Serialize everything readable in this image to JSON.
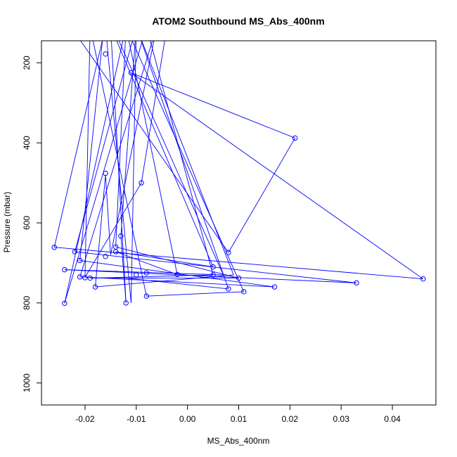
{
  "chart_data": {
    "type": "line",
    "title": "ATOM2 Southbound MS_Abs_400nm",
    "xlabel": "MS_Abs_400nm",
    "ylabel": "Pressure (mbar)",
    "xlim": [
      -0.0285,
      0.0485
    ],
    "ylim": [
      1055,
      145
    ],
    "y_reversed": true,
    "x_ticks": [
      -0.02,
      -0.01,
      0.0,
      0.01,
      0.02,
      0.03,
      0.04
    ],
    "x_tick_labels": [
      "-0.02",
      "-0.01",
      "0.00",
      "0.01",
      "0.02",
      "0.03",
      "0.04"
    ],
    "y_ticks": [
      200,
      400,
      600,
      800,
      1000
    ],
    "y_tick_labels": [
      "200",
      "400",
      "600",
      "800",
      "1000"
    ],
    "grid": false,
    "series": [
      {
        "color": "#0000ff",
        "line_segments": [
          [
            [
              -0.0225,
              115
            ],
            [
              0.008,
              674
            ]
          ],
          [
            [
              0.008,
              674
            ],
            [
              0.021,
              388
            ]
          ],
          [
            [
              0.021,
              388
            ],
            [
              -0.011,
              225
            ]
          ],
          [
            [
              -0.011,
              225
            ],
            [
              0.046,
              740
            ]
          ],
          [
            [
              0.046,
              740
            ],
            [
              -0.026,
              661
            ]
          ],
          [
            [
              -0.026,
              661
            ],
            [
              -0.016,
              110
            ]
          ],
          [
            [
              -0.016,
              110
            ],
            [
              -0.011,
              800
            ]
          ],
          [
            [
              -0.011,
              800
            ],
            [
              -0.01,
              110
            ]
          ],
          [
            [
              -0.01,
              110
            ],
            [
              0.009,
              730
            ]
          ],
          [
            [
              0.009,
              730
            ],
            [
              -0.018,
              760
            ]
          ],
          [
            [
              -0.018,
              760
            ],
            [
              -0.016,
              480
            ]
          ],
          [
            [
              -0.016,
              480
            ],
            [
              -0.015,
              680
            ]
          ],
          [
            [
              -0.015,
              680
            ],
            [
              -0.006,
              110
            ]
          ],
          [
            [
              -0.006,
              110
            ],
            [
              -0.021,
              735
            ]
          ],
          [
            [
              -0.021,
              735
            ],
            [
              0.017,
              760
            ]
          ],
          [
            [
              0.017,
              760
            ],
            [
              -0.021,
              694
            ]
          ],
          [
            [
              -0.021,
              694
            ],
            [
              -0.016,
              70
            ]
          ],
          [
            [
              -0.016,
              70
            ],
            [
              0.007,
              730
            ]
          ],
          [
            [
              0.007,
              730
            ],
            [
              -0.024,
              717
            ]
          ],
          [
            [
              -0.024,
              717
            ],
            [
              0.033,
              750
            ]
          ],
          [
            [
              0.033,
              750
            ],
            [
              -0.022,
              672
            ]
          ],
          [
            [
              -0.022,
              672
            ],
            [
              -0.01,
              110
            ]
          ],
          [
            [
              -0.01,
              110
            ],
            [
              -0.004,
              110
            ]
          ],
          [
            [
              -0.004,
              110
            ],
            [
              -0.009,
              500
            ]
          ],
          [
            [
              -0.009,
              500
            ],
            [
              -0.02,
              736
            ]
          ],
          [
            [
              -0.02,
              736
            ],
            [
              -0.019,
              110
            ]
          ],
          [
            [
              -0.019,
              110
            ],
            [
              -0.008,
              783
            ]
          ],
          [
            [
              -0.008,
              783
            ],
            [
              0.011,
              772
            ]
          ],
          [
            [
              0.011,
              772
            ],
            [
              -0.012,
              110
            ]
          ],
          [
            [
              -0.012,
              110
            ],
            [
              -0.024,
              801
            ]
          ],
          [
            [
              -0.024,
              801
            ],
            [
              -0.008,
              110
            ]
          ],
          [
            [
              -0.008,
              110
            ],
            [
              0.005,
              730
            ]
          ],
          [
            [
              0.005,
              730
            ],
            [
              -0.019,
              738
            ]
          ],
          [
            [
              -0.019,
              738
            ],
            [
              0.01,
              738
            ]
          ],
          [
            [
              0.01,
              738
            ],
            [
              -0.014,
              660
            ]
          ],
          [
            [
              -0.014,
              660
            ],
            [
              -0.012,
              110
            ]
          ],
          [
            [
              -0.012,
              110
            ],
            [
              -0.002,
              729
            ]
          ],
          [
            [
              -0.002,
              729
            ],
            [
              -0.014,
              672
            ]
          ],
          [
            [
              -0.014,
              672
            ],
            [
              0.005,
              710
            ]
          ],
          [
            [
              0.005,
              710
            ],
            [
              -0.015,
              110
            ]
          ],
          [
            [
              -0.015,
              110
            ],
            [
              -0.012,
              800
            ]
          ],
          [
            [
              -0.012,
              800
            ],
            [
              -0.013,
              633
            ]
          ],
          [
            [
              -0.013,
              633
            ],
            [
              -0.01,
              110
            ]
          ],
          [
            [
              -0.01,
              110
            ],
            [
              0.008,
              765
            ]
          ],
          [
            [
              0.008,
              765
            ],
            [
              -0.012,
              738
            ]
          ]
        ],
        "points": [
          [
            -0.016,
            178
          ],
          [
            -0.011,
            225
          ],
          [
            0.021,
            388
          ],
          [
            -0.016,
            476
          ],
          [
            -0.009,
            500
          ],
          [
            -0.013,
            633
          ],
          [
            -0.026,
            661
          ],
          [
            -0.014,
            660
          ],
          [
            -0.022,
            672
          ],
          [
            -0.014,
            672
          ],
          [
            0.008,
            674
          ],
          [
            -0.016,
            684
          ],
          [
            -0.021,
            694
          ],
          [
            0.005,
            710
          ],
          [
            -0.024,
            717
          ],
          [
            -0.008,
            725
          ],
          [
            -0.002,
            729
          ],
          [
            0.005,
            730
          ],
          [
            -0.01,
            730
          ],
          [
            -0.021,
            735
          ],
          [
            -0.02,
            737
          ],
          [
            -0.019,
            738
          ],
          [
            0.01,
            738
          ],
          [
            0.046,
            740
          ],
          [
            0.033,
            750
          ],
          [
            -0.018,
            760
          ],
          [
            0.017,
            760
          ],
          [
            0.008,
            765
          ],
          [
            0.011,
            772
          ],
          [
            -0.008,
            783
          ],
          [
            -0.024,
            801
          ],
          [
            -0.012,
            800
          ]
        ]
      }
    ]
  }
}
